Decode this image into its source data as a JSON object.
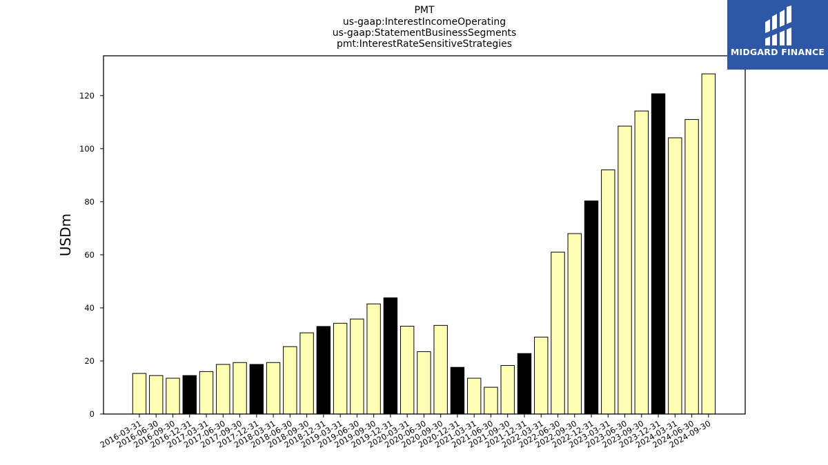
{
  "title_lines": [
    "PMT",
    "us-gaap:InterestIncomeOperating",
    "us-gaap:StatementBusinessSegments",
    "pmt:InterestRateSensitiveStrategies"
  ],
  "logo": {
    "text": "MIDGARD FINANCE",
    "bg_color": "#2e57a5",
    "fg_color": "#ffffff"
  },
  "chart_data": {
    "type": "bar",
    "title": "PMT",
    "ylabel": "USDm",
    "xlabel": "",
    "ylim": [
      0,
      135
    ],
    "yticks": [
      0,
      20,
      40,
      60,
      80,
      100,
      120
    ],
    "grid": false,
    "colors": {
      "regular": "#ffffb3",
      "year_end": "#000000",
      "edge": "#000000"
    },
    "categories": [
      "2016-03-31",
      "2016-06-30",
      "2016-09-30",
      "2016-12-31",
      "2017-03-31",
      "2017-06-30",
      "2017-09-30",
      "2017-12-31",
      "2018-03-31",
      "2018-06-30",
      "2018-09-30",
      "2018-12-31",
      "2019-03-31",
      "2019-06-30",
      "2019-09-30",
      "2019-12-31",
      "2020-03-31",
      "2020-06-30",
      "2020-09-30",
      "2020-12-31",
      "2021-03-31",
      "2021-06-30",
      "2021-09-30",
      "2021-12-31",
      "2022-03-31",
      "2022-06-30",
      "2022-09-30",
      "2022-12-31",
      "2023-03-31",
      "2023-06-30",
      "2023-09-30",
      "2023-12-31",
      "2024-03-31",
      "2024-06-30",
      "2024-09-30"
    ],
    "values": [
      15.3,
      14.5,
      13.5,
      14.5,
      16.0,
      18.7,
      19.4,
      18.7,
      19.4,
      25.4,
      30.6,
      33.0,
      34.2,
      35.8,
      41.5,
      43.8,
      33.1,
      23.5,
      33.4,
      17.6,
      13.5,
      10.1,
      18.3,
      22.8,
      29.0,
      61.0,
      68.0,
      80.3,
      92.0,
      108.5,
      114.2,
      120.7,
      104.1,
      111.0,
      128.2
    ]
  }
}
